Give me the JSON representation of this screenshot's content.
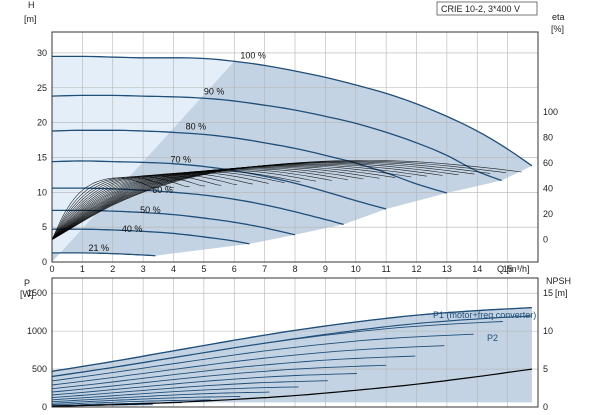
{
  "title": "CRIE 10-2, 3*400 V",
  "colors": {
    "curve": "#1f4e79",
    "fill_op": "#c3d3e3",
    "fill_light": "#e3eef9",
    "eta": "#000000",
    "grid": "#b4b4b4"
  },
  "chart_data": [
    {
      "type": "line",
      "name": "head",
      "xlabel": "Q [m³/h]",
      "ylabel_left": "H",
      "ylabel_left_unit": "[m]",
      "ylabel_right": "eta",
      "ylabel_right_unit": "[%]",
      "xlim": [
        0,
        16
      ],
      "ylim": [
        0,
        33
      ],
      "eta_lim": [
        -17.5,
        162.5
      ],
      "xticks": [
        0,
        1,
        2,
        3,
        4,
        5,
        6,
        7,
        8,
        9,
        10,
        11,
        12,
        13,
        14,
        15
      ],
      "yticks": [
        0,
        5,
        10,
        15,
        20,
        25,
        30
      ],
      "eta_ticks": [
        0,
        20,
        40,
        60,
        80,
        100
      ],
      "grid": true,
      "speed_curves": [
        {
          "label": "100 %",
          "label_x": 6.2,
          "label_y": 29.2,
          "points": [
            [
              0,
              29.5
            ],
            [
              1,
              29.5
            ],
            [
              2,
              29.4
            ],
            [
              3,
              29.3
            ],
            [
              4,
              29.3
            ],
            [
              5,
              29.2
            ],
            [
              6,
              28.8
            ],
            [
              7,
              28.2
            ],
            [
              8,
              27.4
            ],
            [
              9,
              26.5
            ],
            [
              10,
              25.4
            ],
            [
              11,
              24.2
            ],
            [
              12,
              22.7
            ],
            [
              13,
              20.9
            ],
            [
              14,
              18.8
            ],
            [
              15,
              16.2
            ],
            [
              15.8,
              13.8
            ]
          ]
        },
        {
          "label": "90 %",
          "label_x": 5.0,
          "label_y": 24.0,
          "points": [
            [
              0,
              23.8
            ],
            [
              1,
              23.9
            ],
            [
              2,
              23.9
            ],
            [
              3,
              23.8
            ],
            [
              4,
              23.7
            ],
            [
              5,
              23.5
            ],
            [
              6,
              23.1
            ],
            [
              7,
              22.5
            ],
            [
              8,
              21.8
            ],
            [
              9,
              20.9
            ],
            [
              10,
              19.9
            ],
            [
              11,
              18.6
            ],
            [
              12,
              17.1
            ],
            [
              13,
              15.3
            ],
            [
              14,
              13.0
            ],
            [
              14.8,
              11.7
            ]
          ]
        },
        {
          "label": "80 %",
          "label_x": 4.4,
          "label_y": 19.0,
          "points": [
            [
              0,
              18.8
            ],
            [
              1,
              18.9
            ],
            [
              2,
              18.9
            ],
            [
              3,
              18.8
            ],
            [
              4,
              18.6
            ],
            [
              5,
              18.3
            ],
            [
              6,
              17.8
            ],
            [
              7,
              17.1
            ],
            [
              8,
              16.3
            ],
            [
              9,
              15.3
            ],
            [
              10,
              14.2
            ],
            [
              11,
              12.8
            ],
            [
              12,
              11.2
            ],
            [
              13,
              9.9
            ]
          ]
        },
        {
          "label": "70 %",
          "label_x": 3.9,
          "label_y": 14.3,
          "points": [
            [
              0,
              14.4
            ],
            [
              1,
              14.5
            ],
            [
              2,
              14.4
            ],
            [
              3,
              14.3
            ],
            [
              4,
              14.1
            ],
            [
              5,
              13.7
            ],
            [
              6,
              13.1
            ],
            [
              7,
              12.3
            ],
            [
              8,
              11.3
            ],
            [
              9,
              10.1
            ],
            [
              10,
              8.8
            ],
            [
              11,
              7.6
            ]
          ]
        },
        {
          "label": "60 %",
          "label_x": 3.3,
          "label_y": 9.9,
          "points": [
            [
              0,
              10.6
            ],
            [
              1,
              10.6
            ],
            [
              2,
              10.5
            ],
            [
              3,
              10.3
            ],
            [
              4,
              10.0
            ],
            [
              5,
              9.6
            ],
            [
              6,
              9.0
            ],
            [
              7,
              8.2
            ],
            [
              8,
              7.2
            ],
            [
              9,
              6.1
            ],
            [
              9.6,
              5.4
            ]
          ]
        },
        {
          "label": "50 %",
          "label_x": 2.9,
          "label_y": 7.0,
          "points": [
            [
              0,
              7.4
            ],
            [
              1,
              7.4
            ],
            [
              2,
              7.3
            ],
            [
              3,
              7.1
            ],
            [
              4,
              6.8
            ],
            [
              5,
              6.3
            ],
            [
              6,
              5.7
            ],
            [
              7,
              4.9
            ],
            [
              8,
              3.9
            ]
          ]
        },
        {
          "label": "40 %",
          "label_x": 2.3,
          "label_y": 4.3,
          "points": [
            [
              0,
              4.7
            ],
            [
              1,
              4.7
            ],
            [
              2,
              4.6
            ],
            [
              3,
              4.4
            ],
            [
              4,
              4.1
            ],
            [
              5,
              3.6
            ],
            [
              6,
              3.0
            ],
            [
              6.5,
              2.6
            ]
          ]
        },
        {
          "label": "21 %",
          "label_x": 1.2,
          "label_y": 1.6,
          "points": [
            [
              0,
              1.3
            ],
            [
              1,
              1.3
            ],
            [
              2,
              1.2
            ],
            [
              3,
              1.0
            ],
            [
              3.4,
              0.9
            ]
          ]
        }
      ]
    },
    {
      "type": "line",
      "name": "power",
      "xlabel": "Q [m³/h]",
      "ylabel_left": "P",
      "ylabel_left_unit": "[W]",
      "ylabel_right": "NPSH",
      "ylabel_right_unit": "[m]",
      "xlim": [
        0,
        16
      ],
      "ylim": [
        0,
        1700
      ],
      "npsh_lim": [
        0,
        17
      ],
      "xticks": [
        0,
        1,
        2,
        3,
        4,
        5,
        6,
        7,
        8,
        9,
        10,
        11,
        12,
        13,
        14,
        15
      ],
      "yticks": [
        0,
        500,
        1000,
        1500
      ],
      "npsh_ticks": [
        0,
        5,
        10,
        15
      ],
      "grid": true,
      "series": [
        {
          "name": "P1 (motor+freq.converter)",
          "points": [
            [
              0,
              470
            ],
            [
              2,
              600
            ],
            [
              4,
              740
            ],
            [
              6,
              880
            ],
            [
              8,
              1010
            ],
            [
              10,
              1120
            ],
            [
              12,
              1210
            ],
            [
              14,
              1270
            ],
            [
              15.8,
              1310
            ]
          ]
        },
        {
          "name": "P2",
          "points": [
            [
              0,
              400
            ],
            [
              2,
              520
            ],
            [
              4,
              650
            ],
            [
              6,
              780
            ],
            [
              8,
              900
            ],
            [
              10,
              1010
            ],
            [
              12,
              1100
            ],
            [
              14,
              1160
            ],
            [
              15.8,
              1200
            ]
          ]
        }
      ],
      "npsh": [
        [
          0,
          0.1
        ],
        [
          2,
          0.3
        ],
        [
          4,
          0.6
        ],
        [
          6,
          1.0
        ],
        [
          8,
          1.5
        ],
        [
          10,
          2.2
        ],
        [
          12,
          3.0
        ],
        [
          14,
          4.0
        ],
        [
          15.8,
          5.0
        ]
      ]
    }
  ]
}
